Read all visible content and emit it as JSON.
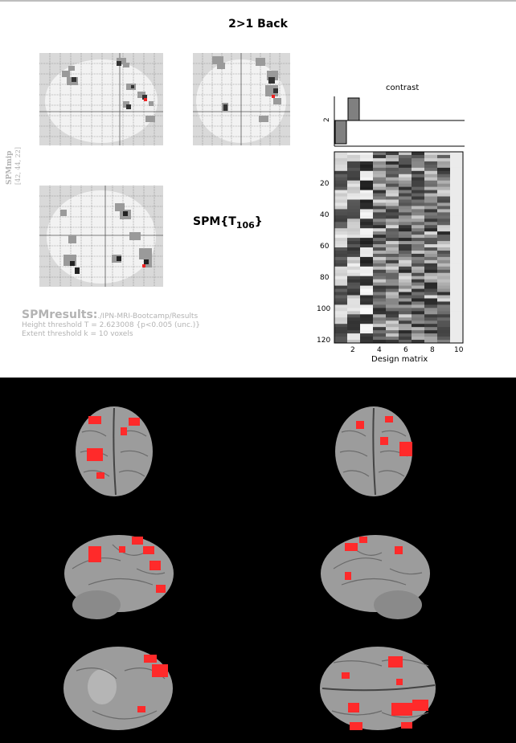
{
  "title": "2>1 Back",
  "spm_label": {
    "main": "SPMmip",
    "coords": "[42, 44, 22]"
  },
  "stat": {
    "prefix": "SPM{T",
    "subscript": "106",
    "suffix": "}"
  },
  "results": {
    "label": "SPMresults:",
    "path": "./IPN-MRI-Bootcamp/Results",
    "height_threshold": "Height threshold T = 2.623008  {p<0.005 (unc.)}",
    "extent_threshold": "Extent threshold k = 10 voxels"
  },
  "contrast": {
    "title": "contrast",
    "y_tick": "2"
  },
  "design_matrix": {
    "xlabel": "Design matrix",
    "x_ticks": [
      "2",
      "4",
      "6",
      "8",
      "10"
    ],
    "y_ticks": [
      "20",
      "40",
      "60",
      "80",
      "100",
      "120"
    ]
  },
  "colors": {
    "background": "#ffffff",
    "activation": "#ff2a2a",
    "render_bg": "#000000",
    "label_gray": "#b3b3b3"
  },
  "icons": {
    "brain_render": "brain-render-icon",
    "glass_brain": "glass-brain-icon"
  }
}
